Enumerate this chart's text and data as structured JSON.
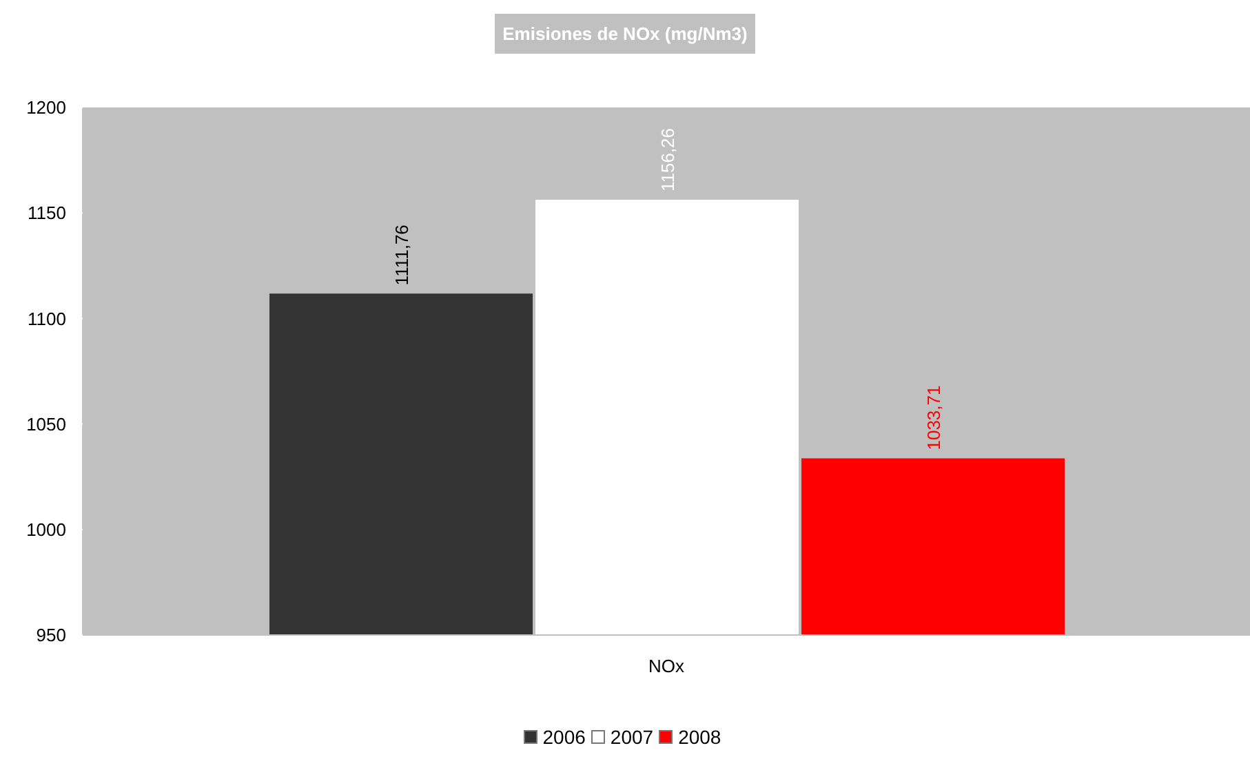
{
  "chart_data": {
    "type": "bar",
    "title": "Emisiones de NOx (mg/Nm3)",
    "categories": [
      "NOx"
    ],
    "series": [
      {
        "name": "2006",
        "color": "#333333",
        "values": [
          1111.76
        ],
        "value_labels": [
          "1111,76"
        ]
      },
      {
        "name": "2007",
        "color": "#ffffff",
        "values": [
          1156.26
        ],
        "value_labels": [
          "1156,26"
        ]
      },
      {
        "name": "2008",
        "color": "#ff0000",
        "values": [
          1033.71
        ],
        "value_labels": [
          "1033,71"
        ]
      }
    ],
    "ylim": [
      950,
      1200
    ],
    "yticks": [
      950,
      1000,
      1050,
      1100,
      1150,
      1200
    ],
    "grid": false,
    "legend": "bottom"
  }
}
